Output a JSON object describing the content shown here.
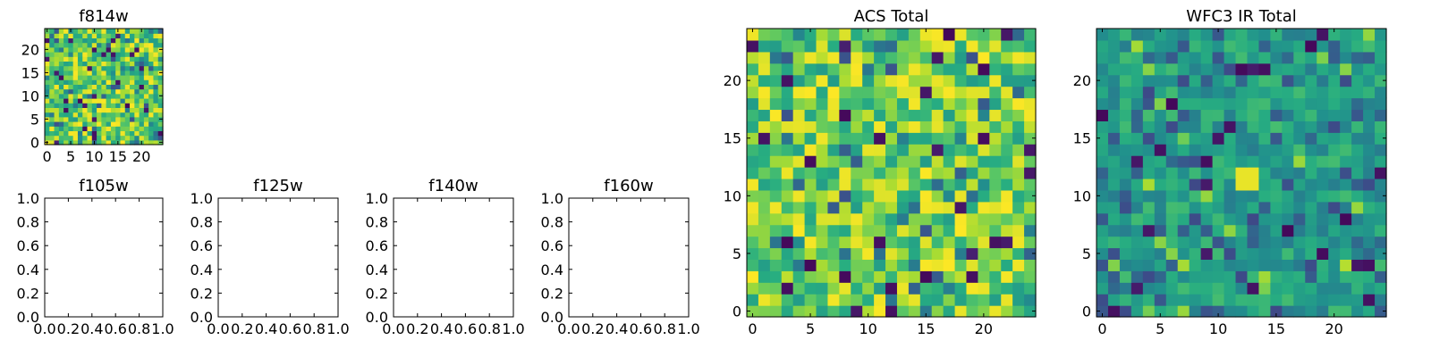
{
  "chart_data": [
    {
      "id": "f814w",
      "type": "heatmap",
      "title": "f814w",
      "grid_size": 25,
      "colormap": "viridis",
      "xticks": [
        "0",
        "5",
        "10",
        "15",
        "20"
      ],
      "yticks": [
        "0",
        "5",
        "10",
        "15",
        "20"
      ],
      "xlim": [
        -0.5,
        24.5
      ],
      "ylim": [
        -0.5,
        24.5
      ],
      "value_range": [
        0,
        1
      ],
      "seed": 814,
      "style": "bright"
    },
    {
      "id": "f105w",
      "type": "empty",
      "title": "f105w",
      "xticks": [
        "0.0",
        "0.2",
        "0.4",
        "0.6",
        "0.8",
        "1.0"
      ],
      "yticks": [
        "0.0",
        "0.2",
        "0.4",
        "0.6",
        "0.8",
        "1.0"
      ],
      "xlim": [
        0,
        1
      ],
      "ylim": [
        0,
        1
      ]
    },
    {
      "id": "f125w",
      "type": "empty",
      "title": "f125w",
      "xticks": [
        "0.0",
        "0.2",
        "0.4",
        "0.6",
        "0.8",
        "1.0"
      ],
      "yticks": [
        "0.0",
        "0.2",
        "0.4",
        "0.6",
        "0.8",
        "1.0"
      ],
      "xlim": [
        0,
        1
      ],
      "ylim": [
        0,
        1
      ]
    },
    {
      "id": "f140w",
      "type": "empty",
      "title": "f140w",
      "xticks": [
        "0.0",
        "0.2",
        "0.4",
        "0.6",
        "0.8",
        "1.0"
      ],
      "yticks": [
        "0.0",
        "0.2",
        "0.4",
        "0.6",
        "0.8",
        "1.0"
      ],
      "xlim": [
        0,
        1
      ],
      "ylim": [
        0,
        1
      ]
    },
    {
      "id": "f160w",
      "type": "empty",
      "title": "f160w",
      "xticks": [
        "0.0",
        "0.2",
        "0.4",
        "0.6",
        "0.8",
        "1.0"
      ],
      "yticks": [
        "0.0",
        "0.2",
        "0.4",
        "0.6",
        "0.8",
        "1.0"
      ],
      "xlim": [
        0,
        1
      ],
      "ylim": [
        0,
        1
      ]
    },
    {
      "id": "acs_total",
      "type": "heatmap",
      "title": "ACS Total",
      "grid_size": 25,
      "colormap": "viridis",
      "xticks": [
        "0",
        "5",
        "10",
        "15",
        "20"
      ],
      "yticks": [
        "0",
        "5",
        "10",
        "15",
        "20"
      ],
      "xlim": [
        -0.5,
        24.5
      ],
      "ylim": [
        -0.5,
        24.5
      ],
      "value_range": [
        0,
        1
      ],
      "seed": 2024,
      "style": "bright"
    },
    {
      "id": "wfc3_ir_total",
      "type": "heatmap",
      "title": "WFC3 IR Total",
      "grid_size": 25,
      "colormap": "viridis",
      "xticks": [
        "0",
        "5",
        "10",
        "15",
        "20"
      ],
      "yticks": [
        "0",
        "5",
        "10",
        "15",
        "20"
      ],
      "xlim": [
        -0.5,
        24.5
      ],
      "ylim": [
        -0.5,
        24.5
      ],
      "value_range": [
        0,
        1
      ],
      "seed": 3131,
      "style": "muted",
      "bright_patch": {
        "x": [
          12,
          13
        ],
        "y": [
          11,
          12
        ],
        "value": 0.97
      }
    }
  ]
}
